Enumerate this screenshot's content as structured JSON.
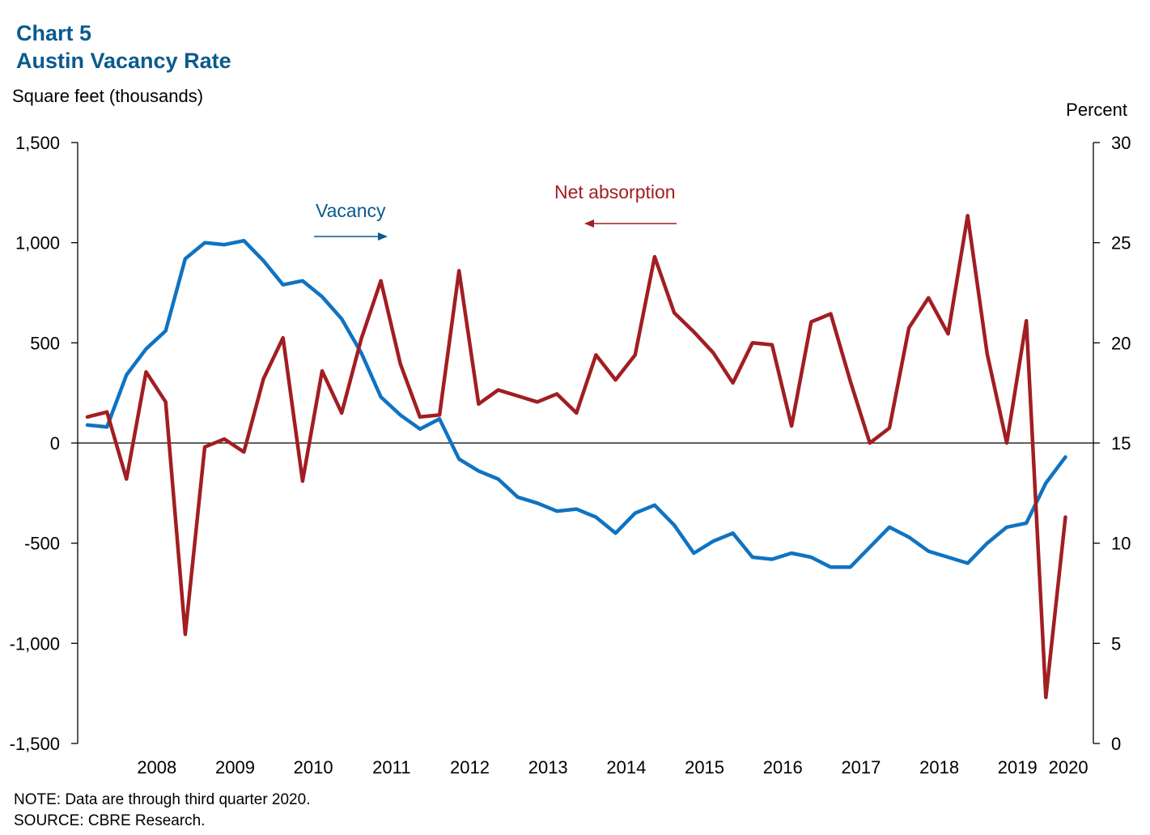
{
  "chart_data": {
    "type": "line",
    "title": "Chart 5",
    "subtitle": "Austin Vacancy Rate",
    "left_axis_label": "Square feet (thousands)",
    "right_axis_label": "Percent",
    "left_ylim": [
      -1500,
      1500
    ],
    "left_ticks": [
      1500,
      1000,
      500,
      0,
      -500,
      -1000,
      -1500
    ],
    "left_tick_labels": [
      "1,500",
      "1,000",
      "500",
      "0",
      "-500",
      "-1,000",
      "-1,500"
    ],
    "right_ylim": [
      0,
      30
    ],
    "right_ticks": [
      30,
      25,
      20,
      15,
      10,
      5,
      0
    ],
    "right_tick_labels": [
      "30",
      "25",
      "20",
      "15",
      "10",
      "5",
      "0"
    ],
    "x_labels": [
      "2008",
      "2009",
      "2010",
      "2011",
      "2012",
      "2013",
      "2014",
      "2015",
      "2016",
      "2017",
      "2018",
      "2019",
      "2020"
    ],
    "x_start_year": 2007,
    "quarters_per_year": 4,
    "series": [
      {
        "name": "Vacancy",
        "axis": "right",
        "color": "#0f73c2",
        "values": [
          15.9,
          15.8,
          18.4,
          19.7,
          20.6,
          24.2,
          25.0,
          24.9,
          25.1,
          24.1,
          22.9,
          23.1,
          22.3,
          21.2,
          19.5,
          17.3,
          16.4,
          15.7,
          16.2,
          14.2,
          13.6,
          13.2,
          12.3,
          12.0,
          11.6,
          11.7,
          11.3,
          10.5,
          11.5,
          11.9,
          10.9,
          9.5,
          10.1,
          10.5,
          9.3,
          9.2,
          9.5,
          9.3,
          8.8,
          8.8,
          9.8,
          10.8,
          10.3,
          9.6,
          9.3,
          9.0,
          10.0,
          10.8,
          11.0,
          13.0,
          14.3
        ]
      },
      {
        "name": "Net absorption",
        "axis": "left",
        "color": "#a11e22",
        "values": [
          130,
          155,
          -180,
          355,
          205,
          -955,
          -20,
          20,
          -45,
          320,
          525,
          -190,
          360,
          150,
          520,
          810,
          395,
          130,
          140,
          860,
          195,
          265,
          235,
          205,
          245,
          150,
          440,
          315,
          440,
          930,
          650,
          555,
          450,
          300,
          500,
          490,
          85,
          605,
          645,
          310,
          0,
          75,
          575,
          725,
          545,
          1135,
          445,
          0,
          610,
          -1270,
          -370
        ]
      }
    ],
    "annotations": [
      {
        "text": "Vacancy",
        "arrow": "right",
        "color": "#0b5a8e"
      },
      {
        "text": "Net absorption",
        "arrow": "left",
        "color": "#a11e22"
      }
    ],
    "notes": [
      "NOTE: Data are through third quarter 2020.",
      "SOURCE: CBRE Research."
    ]
  }
}
